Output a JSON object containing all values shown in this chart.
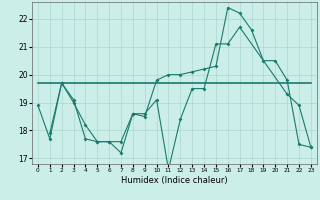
{
  "xlabel": "Humidex (Indice chaleur)",
  "bg_color": "#cceee8",
  "line_color": "#1a7a6e",
  "grid_color": "#aad8d0",
  "xlim": [
    -0.5,
    23.5
  ],
  "ylim": [
    16.8,
    22.6
  ],
  "yticks": [
    17,
    18,
    19,
    20,
    21,
    22
  ],
  "xticks": [
    0,
    1,
    2,
    3,
    4,
    5,
    6,
    7,
    8,
    9,
    10,
    11,
    12,
    13,
    14,
    15,
    16,
    17,
    18,
    19,
    20,
    21,
    22,
    23
  ],
  "line1_x": [
    0,
    1,
    2,
    3,
    4,
    5,
    6,
    7,
    8,
    9,
    10,
    11,
    12,
    13,
    14,
    15,
    16,
    17,
    21,
    22,
    23
  ],
  "line1_y": [
    18.9,
    17.7,
    19.7,
    19.1,
    17.7,
    17.6,
    17.6,
    17.2,
    18.6,
    18.6,
    19.1,
    16.6,
    18.4,
    19.5,
    19.5,
    21.1,
    21.1,
    21.7,
    19.3,
    18.9,
    17.4
  ],
  "line2_x": [
    0,
    1,
    2,
    3,
    4,
    5,
    6,
    7,
    8,
    9,
    10,
    11,
    12,
    13,
    14,
    15,
    16,
    17,
    18,
    19,
    20,
    21,
    22,
    23
  ],
  "line2_y": [
    19.7,
    19.7,
    19.7,
    19.7,
    19.7,
    19.7,
    19.7,
    19.7,
    19.7,
    19.7,
    19.7,
    19.7,
    19.7,
    19.7,
    19.7,
    19.7,
    19.7,
    19.7,
    19.7,
    19.7,
    19.7,
    19.7,
    19.7,
    19.7
  ],
  "line3_x": [
    1,
    2,
    3,
    4,
    5,
    6,
    7,
    8,
    9,
    10,
    11,
    12,
    13,
    14,
    15,
    16,
    17,
    18,
    19,
    20,
    21,
    22,
    23
  ],
  "line3_y": [
    17.9,
    19.7,
    19.0,
    18.2,
    17.6,
    17.6,
    17.6,
    18.6,
    18.5,
    19.8,
    20.0,
    20.0,
    20.1,
    20.2,
    20.3,
    22.4,
    22.2,
    21.6,
    20.5,
    20.5,
    19.8,
    17.5,
    17.4
  ]
}
